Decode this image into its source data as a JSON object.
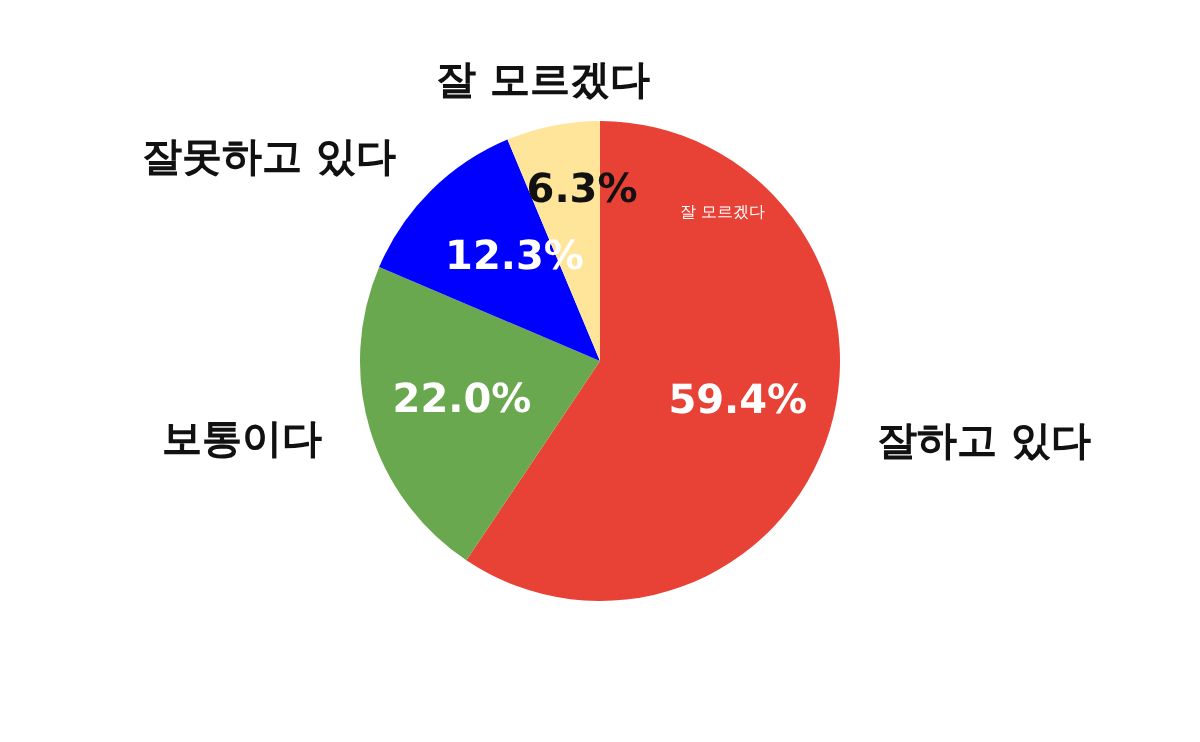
{
  "chart_data": {
    "type": "pie",
    "categories": [
      "잘하고 있다",
      "보통이다",
      "잘못하고 있다",
      "잘 모르겠다"
    ],
    "values": [
      59.4,
      22.0,
      12.3,
      6.3
    ],
    "colors": [
      "#e84135",
      "#6aa84f",
      "#0000ff",
      "#ffe599"
    ],
    "value_labels": [
      "59.4%",
      "22.0%",
      "12.3%",
      "6.3%"
    ],
    "legend": false,
    "annotations": [
      "잘 모르겠다"
    ]
  }
}
